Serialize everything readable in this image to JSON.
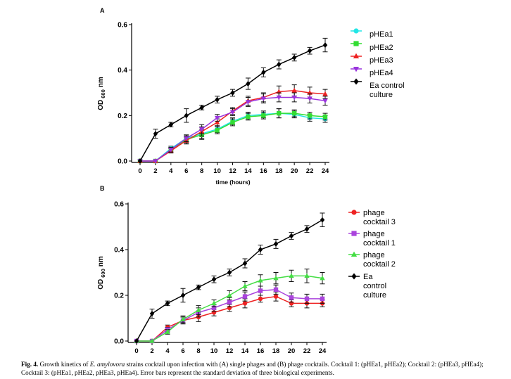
{
  "caption": {
    "label": "Fig. 4.",
    "text_1": "Growth kinetics of",
    "species": "E. amylovora",
    "text_2": "strains cocktail upon infection with (A) single phages and (B) phage cocktails. Cocktail 1: (pHEa1, pHEa2); Cocktail 2: (pHEa3, pHEa4); Cocktail 3: (pHEa1, pHEa2, pHEa3, pHEa4). Error bars represent the standard deviation of three biological experiments."
  },
  "chart_data": [
    {
      "panel_label": "A",
      "type": "line",
      "xlabel": "time (hours)",
      "ylabel_main": "OD",
      "ylabel_sub": "600",
      "ylabel_unit": "nm",
      "x": [
        0,
        2,
        4,
        6,
        8,
        10,
        12,
        14,
        16,
        18,
        20,
        22,
        24
      ],
      "xticks": [
        "0",
        "2",
        "4",
        "6",
        "8",
        "10",
        "12",
        "14",
        "16",
        "18",
        "20",
        "22",
        "24"
      ],
      "yticks": [
        0.0,
        0.2,
        0.4,
        0.6
      ],
      "ytick_labels": [
        "0.0",
        "0.2",
        "0.4",
        "0.6"
      ],
      "ylim": [
        0,
        0.6
      ],
      "series": [
        {
          "name": "pHEa1",
          "color": "#22e6e6",
          "marker": "circle",
          "values": [
            0,
            0,
            0.055,
            0.1,
            0.12,
            0.14,
            0.175,
            0.2,
            0.205,
            0.21,
            0.205,
            0.19,
            0.185
          ],
          "errors": [
            0,
            0,
            0.01,
            0.015,
            0.02,
            0.015,
            0.015,
            0.015,
            0.015,
            0.02,
            0.015,
            0.015,
            0.015
          ]
        },
        {
          "name": "pHEa2",
          "color": "#33dd33",
          "marker": "square",
          "values": [
            0,
            0,
            0.05,
            0.095,
            0.115,
            0.135,
            0.17,
            0.195,
            0.2,
            0.21,
            0.21,
            0.2,
            0.195
          ],
          "errors": [
            0,
            0,
            0.01,
            0.015,
            0.02,
            0.015,
            0.015,
            0.015,
            0.015,
            0.02,
            0.015,
            0.015,
            0.015
          ]
        },
        {
          "name": "pHEa3",
          "color": "#ee2222",
          "marker": "triangle-up",
          "values": [
            0,
            0,
            0.045,
            0.09,
            0.13,
            0.17,
            0.22,
            0.265,
            0.28,
            0.305,
            0.31,
            0.3,
            0.295
          ],
          "errors": [
            0,
            0,
            0.01,
            0.015,
            0.02,
            0.015,
            0.015,
            0.02,
            0.02,
            0.025,
            0.025,
            0.025,
            0.02
          ]
        },
        {
          "name": "pHEa4",
          "color": "#9933dd",
          "marker": "triangle-down",
          "values": [
            0,
            0,
            0.05,
            0.1,
            0.14,
            0.19,
            0.215,
            0.26,
            0.275,
            0.28,
            0.28,
            0.275,
            0.265
          ],
          "errors": [
            0,
            0,
            0.01,
            0.015,
            0.02,
            0.015,
            0.015,
            0.02,
            0.02,
            0.02,
            0.02,
            0.02,
            0.02
          ]
        },
        {
          "name_line1": "Ea control",
          "name_line2": "culture",
          "color": "#000000",
          "marker": "diamond",
          "values": [
            0,
            0.12,
            0.16,
            0.2,
            0.235,
            0.27,
            0.3,
            0.34,
            0.39,
            0.425,
            0.455,
            0.485,
            0.51
          ],
          "errors": [
            0,
            0.02,
            0.01,
            0.03,
            0.01,
            0.015,
            0.015,
            0.025,
            0.02,
            0.02,
            0.015,
            0.015,
            0.03
          ]
        }
      ]
    },
    {
      "panel_label": "B",
      "type": "line",
      "xlabel": "",
      "ylabel_main": "OD",
      "ylabel_sub": "600",
      "ylabel_unit": "nm",
      "x": [
        0,
        2,
        4,
        6,
        8,
        10,
        12,
        14,
        16,
        18,
        20,
        22,
        24
      ],
      "xticks": [
        "0",
        "2",
        "4",
        "6",
        "8",
        "10",
        "12",
        "14",
        "16",
        "18",
        "20",
        "22",
        "24"
      ],
      "yticks": [
        0.0,
        0.2,
        0.4,
        0.6
      ],
      "ytick_labels": [
        "0.0",
        "0.2",
        "0.4",
        "0.6"
      ],
      "ylim": [
        0,
        0.6
      ],
      "series": [
        {
          "name_line1": "phage",
          "name_line2": "cocktail 3",
          "color": "#ee2222",
          "marker": "circle",
          "values": [
            0,
            0,
            0.06,
            0.09,
            0.105,
            0.125,
            0.145,
            0.165,
            0.185,
            0.195,
            0.165,
            0.165,
            0.165
          ],
          "errors": [
            0,
            0,
            0.01,
            0.015,
            0.02,
            0.015,
            0.015,
            0.02,
            0.015,
            0.02,
            0.015,
            0.02,
            0.015
          ]
        },
        {
          "name_line1": "phage",
          "name_line2": "cocktail 1",
          "color": "#aa44dd",
          "marker": "square",
          "values": [
            0,
            0,
            0.05,
            0.09,
            0.125,
            0.145,
            0.17,
            0.195,
            0.22,
            0.225,
            0.19,
            0.185,
            0.185
          ],
          "errors": [
            0,
            0,
            0.01,
            0.015,
            0.02,
            0.015,
            0.02,
            0.02,
            0.02,
            0.02,
            0.02,
            0.02,
            0.02
          ]
        },
        {
          "name_line1": "phage",
          "name_line2": "cocktail 2",
          "color": "#44dd44",
          "marker": "triangle-up",
          "values": [
            0,
            0,
            0.04,
            0.095,
            0.135,
            0.165,
            0.2,
            0.24,
            0.265,
            0.275,
            0.285,
            0.285,
            0.275
          ],
          "errors": [
            0,
            0,
            0.01,
            0.015,
            0.02,
            0.015,
            0.02,
            0.02,
            0.025,
            0.025,
            0.025,
            0.03,
            0.025
          ]
        },
        {
          "name_line1": "Ea",
          "name_line2": "control",
          "name_line3": "culture",
          "color": "#000000",
          "marker": "diamond",
          "values": [
            0,
            0.12,
            0.165,
            0.2,
            0.235,
            0.27,
            0.3,
            0.34,
            0.4,
            0.425,
            0.46,
            0.49,
            0.53
          ],
          "errors": [
            0,
            0.02,
            0.01,
            0.03,
            0.01,
            0.015,
            0.015,
            0.02,
            0.02,
            0.02,
            0.015,
            0.015,
            0.03
          ]
        }
      ]
    }
  ]
}
